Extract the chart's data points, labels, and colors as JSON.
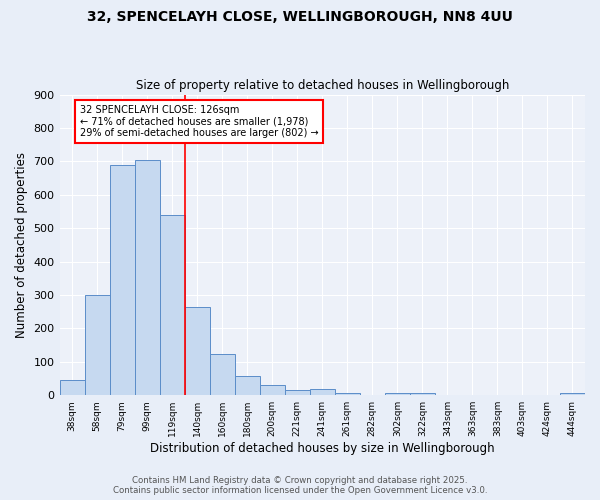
{
  "title1": "32, SPENCELAYH CLOSE, WELLINGBOROUGH, NN8 4UU",
  "title2": "Size of property relative to detached houses in Wellingborough",
  "xlabel": "Distribution of detached houses by size in Wellingborough",
  "ylabel": "Number of detached properties",
  "bin_labels": [
    "38sqm",
    "58sqm",
    "79sqm",
    "99sqm",
    "119sqm",
    "140sqm",
    "160sqm",
    "180sqm",
    "200sqm",
    "221sqm",
    "241sqm",
    "261sqm",
    "282sqm",
    "302sqm",
    "322sqm",
    "343sqm",
    "363sqm",
    "383sqm",
    "403sqm",
    "424sqm",
    "444sqm"
  ],
  "bin_values": [
    45,
    300,
    690,
    705,
    540,
    265,
    122,
    58,
    30,
    15,
    20,
    8,
    2,
    7,
    7,
    2,
    2,
    2,
    2,
    0,
    8
  ],
  "bar_color": "#c6d9f0",
  "bar_edge_color": "#5b8dc9",
  "vline_x": 4.5,
  "vline_color": "red",
  "annotation_text": "32 SPENCELAYH CLOSE: 126sqm\n← 71% of detached houses are smaller (1,978)\n29% of semi-detached houses are larger (802) →",
  "ylim": [
    0,
    900
  ],
  "yticks": [
    0,
    100,
    200,
    300,
    400,
    500,
    600,
    700,
    800,
    900
  ],
  "footer1": "Contains HM Land Registry data © Crown copyright and database right 2025.",
  "footer2": "Contains public sector information licensed under the Open Government Licence v3.0.",
  "bg_color": "#e8eef8",
  "plot_bg_color": "#edf1f9"
}
